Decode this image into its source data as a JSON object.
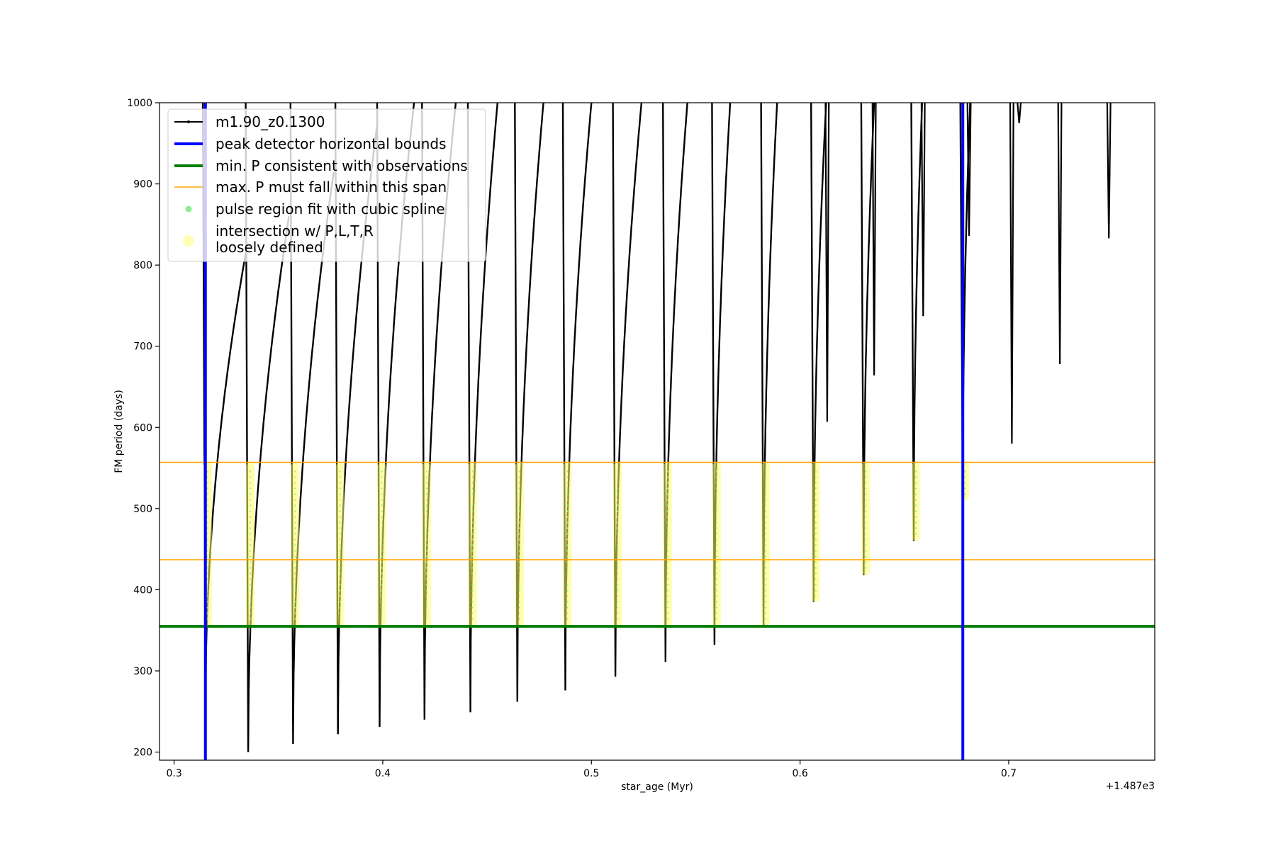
{
  "chart_data": {
    "type": "line",
    "xlabel": "star_age (Myr)",
    "ylabel": "FM period (days)",
    "x_offset_label": "+1.487e3",
    "xlim": [
      0.293,
      0.77
    ],
    "ylim": [
      190,
      1000
    ],
    "x_ticks": [
      {
        "value": 0.3,
        "label": "0.3"
      },
      {
        "value": 0.4,
        "label": "0.4"
      },
      {
        "value": 0.5,
        "label": "0.5"
      },
      {
        "value": 0.6,
        "label": "0.6"
      },
      {
        "value": 0.7,
        "label": "0.7"
      }
    ],
    "y_ticks": [
      {
        "value": 200,
        "label": "200"
      },
      {
        "value": 300,
        "label": "300"
      },
      {
        "value": 400,
        "label": "400"
      },
      {
        "value": 500,
        "label": "500"
      },
      {
        "value": 600,
        "label": "600"
      },
      {
        "value": 700,
        "label": "700"
      },
      {
        "value": 800,
        "label": "800"
      },
      {
        "value": 900,
        "label": "900"
      },
      {
        "value": 1000,
        "label": "1000"
      }
    ],
    "grid": false,
    "legend_position": "top-left",
    "legend": [
      {
        "label": "m1.90_z0.1300",
        "kind": "line-marker",
        "color": "#000000"
      },
      {
        "label": "peak detector horizontal bounds",
        "kind": "line-thick",
        "color": "#0000ff"
      },
      {
        "label": "min. P consistent with observations",
        "kind": "line-thick",
        "color": "#008000"
      },
      {
        "label": "max. P must fall within this span",
        "kind": "line-thin",
        "color": "#ffa500"
      },
      {
        "label": "pulse region fit with cubic spline",
        "kind": "dot-small",
        "color": "#90ee90"
      },
      {
        "label": "intersection w/ P,L,T,R",
        "label2": "loosely defined",
        "kind": "dot-large",
        "color": "#ffff99"
      }
    ],
    "vertical_bounds": [
      0.315,
      0.678
    ],
    "min_period": 355,
    "max_period_span": [
      437,
      557
    ],
    "pulses": [
      {
        "min_x": 0.315,
        "min_y": 252,
        "peak_x": 0.3345,
        "peak_y": 817
      },
      {
        "min_x": 0.3355,
        "min_y": 200,
        "peak_x": 0.355,
        "peak_y": 860
      },
      {
        "min_x": 0.357,
        "min_y": 210,
        "peak_x": 0.3765,
        "peak_y": 915
      },
      {
        "min_x": 0.3785,
        "min_y": 222,
        "peak_x": 0.3975,
        "peak_y": 977
      },
      {
        "min_x": 0.3985,
        "min_y": 231,
        "peak_x": 0.415,
        "peak_y": 1000
      },
      {
        "min_x": 0.42,
        "min_y": 240,
        "peak_x": 0.435,
        "peak_y": 1000
      },
      {
        "min_x": 0.442,
        "min_y": 249,
        "peak_x": 0.455,
        "peak_y": 1000
      },
      {
        "min_x": 0.4645,
        "min_y": 262,
        "peak_x": 0.477,
        "peak_y": 1000
      },
      {
        "min_x": 0.4875,
        "min_y": 276,
        "peak_x": 0.5,
        "peak_y": 1000
      },
      {
        "min_x": 0.5115,
        "min_y": 293,
        "peak_x": 0.524,
        "peak_y": 1000
      },
      {
        "min_x": 0.5355,
        "min_y": 311,
        "peak_x": 0.546,
        "peak_y": 1000
      },
      {
        "min_x": 0.559,
        "min_y": 332,
        "peak_x": 0.5665,
        "peak_y": 1000
      },
      {
        "min_x": 0.5825,
        "min_y": 355,
        "peak_x": 0.589,
        "peak_y": 1000
      },
      {
        "min_x": 0.6065,
        "min_y": 385,
        "peak_x": 0.6125,
        "peak_y": 1000
      },
      {
        "min_x": 0.6305,
        "min_y": 418,
        "peak_x": 0.6355,
        "peak_y": 1000
      },
      {
        "min_x": 0.6545,
        "min_y": 460,
        "peak_x": 0.6585,
        "peak_y": 1000
      },
      {
        "min_x": 0.678,
        "min_y": 510,
        "peak_x": 0.6815,
        "peak_y": 1000
      }
    ],
    "spikes": [
      {
        "x": 0.613,
        "min_y": 607
      },
      {
        "x": 0.6355,
        "min_y": 664
      },
      {
        "x": 0.659,
        "min_y": 737
      },
      {
        "x": 0.681,
        "min_y": 836
      },
      {
        "x": 0.7015,
        "min_y": 580
      },
      {
        "x": 0.705,
        "min_y": 975
      },
      {
        "x": 0.7245,
        "min_y": 678
      },
      {
        "x": 0.748,
        "min_y": 833
      }
    ]
  }
}
